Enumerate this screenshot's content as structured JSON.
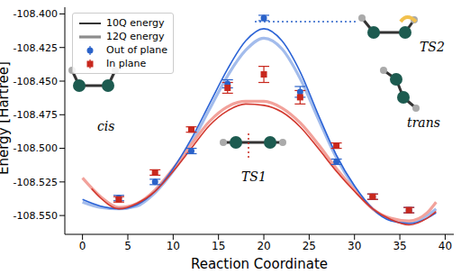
{
  "chart_data": {
    "type": "line",
    "xlabel": "Reaction Coordinate",
    "ylabel": "Energy [Hartree]",
    "xlim": [
      -1.95,
      40.95
    ],
    "xticks": [
      0,
      5,
      10,
      15,
      20,
      25,
      30,
      35,
      40
    ],
    "ylim": [
      -108.564,
      -108.395
    ],
    "yticks": [
      {
        "value": -108.55,
        "label": "-108.550"
      },
      -108.525,
      {
        "value": -108.5,
        "label": "-108.500"
      },
      -108.475,
      {
        "value": -108.45,
        "label": "-108.450"
      },
      -108.425,
      {
        "value": -108.4,
        "label": "-108.400"
      }
    ],
    "legend": "upper left",
    "annotations": [
      "cis",
      "TS1",
      "TS2",
      "trans"
    ],
    "series": [
      {
        "name": "10Q energy",
        "type": "line",
        "color": "#000000",
        "curves": [
          {
            "color": "#2b63d6",
            "x": [
              0,
              2,
              4,
              6,
              8,
              10,
              12,
              14,
              16,
              18,
              20,
              22,
              24,
              26,
              28,
              30,
              32,
              34,
              36,
              38,
              39
            ],
            "values": [
              -108.538,
              -108.543,
              -108.545,
              -108.542,
              -108.532,
              -108.515,
              -108.493,
              -108.467,
              -108.441,
              -108.42,
              -108.411,
              -108.42,
              -108.443,
              -108.475,
              -108.505,
              -108.528,
              -108.545,
              -108.554,
              -108.556,
              -108.552,
              -108.548
            ]
          },
          {
            "color": "#d2372d",
            "x": [
              1,
              2,
              4,
              6,
              8,
              10,
              12,
              14,
              16,
              18,
              20,
              22,
              24,
              26,
              28,
              30,
              32,
              34,
              36,
              38,
              39
            ],
            "values": [
              -108.53,
              -108.537,
              -108.545,
              -108.541,
              -108.532,
              -108.517,
              -108.5,
              -108.483,
              -108.472,
              -108.467,
              -108.468,
              -108.473,
              -108.484,
              -108.5,
              -108.517,
              -108.532,
              -108.545,
              -108.553,
              -108.557,
              -108.552,
              -108.547
            ]
          }
        ]
      },
      {
        "name": "12Q energy",
        "type": "line",
        "color": "#8c8c8c",
        "curves": [
          {
            "color": "#a3bcec",
            "x": [
              0,
              2,
              4,
              6,
              8,
              10,
              12,
              14,
              16,
              18,
              20,
              22,
              24,
              26,
              28,
              30,
              32,
              34,
              36,
              38,
              39
            ],
            "values": [
              -108.54,
              -108.544,
              -108.545,
              -108.543,
              -108.533,
              -108.517,
              -108.496,
              -108.471,
              -108.446,
              -108.427,
              -108.418,
              -108.426,
              -108.448,
              -108.478,
              -108.507,
              -108.529,
              -108.545,
              -108.553,
              -108.555,
              -108.55,
              -108.545
            ]
          },
          {
            "color": "#f2a29b",
            "x": [
              0,
              2,
              4,
              6,
              8,
              10,
              12,
              14,
              16,
              18,
              20,
              22,
              24,
              26,
              28,
              30,
              32,
              34,
              36,
              38,
              39
            ],
            "values": [
              -108.522,
              -108.536,
              -108.544,
              -108.541,
              -108.531,
              -108.515,
              -108.497,
              -108.48,
              -108.469,
              -108.465,
              -108.465,
              -108.47,
              -108.481,
              -108.497,
              -108.515,
              -108.531,
              -108.545,
              -108.552,
              -108.554,
              -108.548,
              -108.54
            ]
          }
        ]
      },
      {
        "name": "Out of plane",
        "type": "scatter",
        "color": "#2a62c9",
        "marker": "circle",
        "x": [
          4,
          8,
          12,
          16,
          20,
          24,
          28,
          32,
          36
        ],
        "values": [
          -108.537,
          -108.525,
          -108.502,
          -108.452,
          -108.403,
          -108.458,
          -108.51,
          -108.536,
          -108.546
        ],
        "errors": [
          0.002,
          0.002,
          0.002,
          0.003,
          0.002,
          0.004,
          0.002,
          0.002,
          0.002
        ]
      },
      {
        "name": "In plane",
        "type": "scatter",
        "color": "#c8281e",
        "marker": "square",
        "x": [
          4,
          8,
          12,
          16,
          20,
          24,
          28,
          32,
          36
        ],
        "values": [
          -108.538,
          -108.518,
          -108.486,
          -108.455,
          -108.445,
          -108.462,
          -108.498,
          -108.536,
          -108.546
        ],
        "errors": [
          0.002,
          0.002,
          0.002,
          0.004,
          0.006,
          0.005,
          0.002,
          0.002,
          0.002
        ]
      }
    ]
  }
}
